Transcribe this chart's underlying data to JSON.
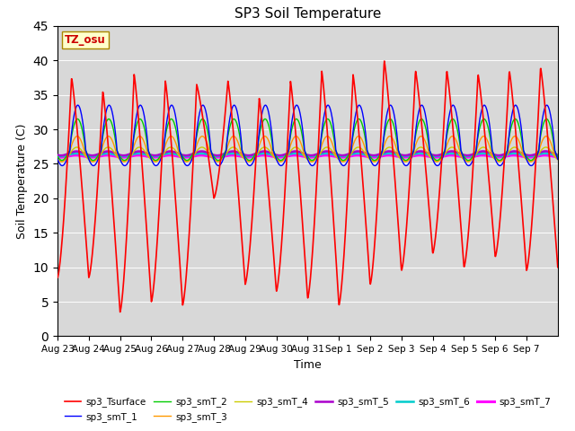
{
  "title": "SP3 Soil Temperature",
  "xlabel": "Time",
  "ylabel": "Soil Temperature (C)",
  "ylim": [
    0,
    45
  ],
  "yticks": [
    0,
    5,
    10,
    15,
    20,
    25,
    30,
    35,
    40,
    45
  ],
  "n_days": 16,
  "annotation_text": "TZ_osu",
  "annotation_color": "#cc0000",
  "annotation_bg": "#ffffcc",
  "annotation_border": "#aa8800",
  "background_color": "#d8d8d8",
  "series_colors": {
    "sp3_Tsurface": "#ff0000",
    "sp3_smT_1": "#0000ff",
    "sp3_smT_2": "#00cc00",
    "sp3_smT_3": "#ff9900",
    "sp3_smT_4": "#cccc00",
    "sp3_smT_5": "#aa00cc",
    "sp3_smT_6": "#00cccc",
    "sp3_smT_7": "#ff00ff"
  },
  "series_linewidths": {
    "sp3_Tsurface": 1.2,
    "sp3_smT_1": 1.0,
    "sp3_smT_2": 1.0,
    "sp3_smT_3": 1.0,
    "sp3_smT_4": 1.0,
    "sp3_smT_5": 1.8,
    "sp3_smT_6": 1.8,
    "sp3_smT_7": 2.2
  },
  "x_tick_labels": [
    "Aug 23",
    "Aug 24",
    "Aug 25",
    "Aug 26",
    "Aug 27",
    "Aug 28",
    "Aug 29",
    "Aug 30",
    "Aug 31",
    "Sep 1",
    "Sep 2",
    "Sep 3",
    "Sep 4",
    "Sep 5",
    "Sep 6",
    "Sep 7"
  ],
  "figsize": [
    6.4,
    4.8
  ],
  "dpi": 100,
  "surface_peaks": [
    37.5,
    35.5,
    38.0,
    37.0,
    36.5,
    37.0,
    34.5,
    37.0,
    38.5,
    38.0,
    40.0,
    38.5,
    38.5,
    38.0,
    38.5,
    39.0
  ],
  "surface_troughs": [
    8.5,
    3.5,
    5.0,
    4.5,
    20.0,
    7.5,
    6.5,
    5.5,
    4.5,
    7.5,
    9.5,
    12.0,
    10.0,
    11.5,
    9.5,
    10.0
  ]
}
